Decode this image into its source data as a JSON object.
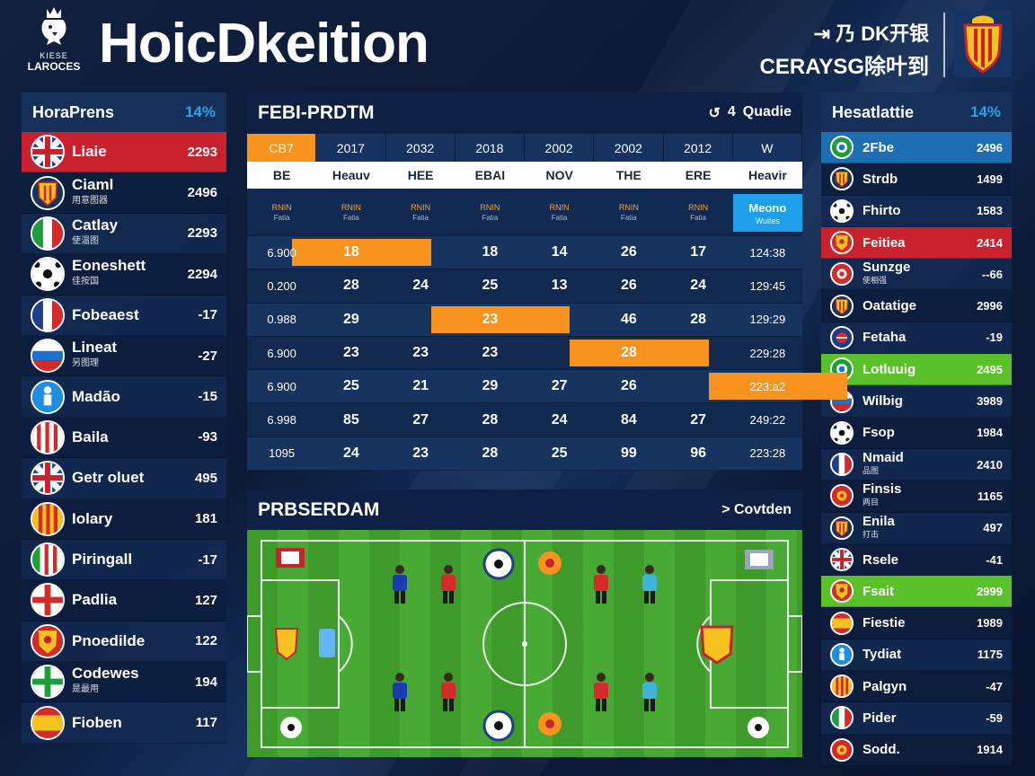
{
  "header": {
    "league_line1": "KIESE",
    "league_line2": "LAROCES",
    "title": "HoicDkeition",
    "right_line1": "⇥ 乃 DK开银",
    "right_line2": "CERAYSG除叶到"
  },
  "left_panel": {
    "title": "HoraPrens",
    "pct": "14%",
    "rows": [
      {
        "name": "Liaie",
        "sub": "",
        "value": "2293",
        "flag": "uk",
        "highlight": "red"
      },
      {
        "name": "Ciaml",
        "sub": "用意图器",
        "value": "2496",
        "flag": "crest",
        "highlight": ""
      },
      {
        "name": "Catlay",
        "sub": "使温图",
        "value": "2293",
        "flag": "italy",
        "highlight": ""
      },
      {
        "name": "Eoneshett",
        "sub": "佳按国",
        "value": "2294",
        "flag": "ball",
        "highlight": ""
      },
      {
        "name": "Fobeaest",
        "sub": "",
        "value": "-17",
        "flag": "france",
        "highlight": ""
      },
      {
        "name": "Lineat",
        "sub": "另图理",
        "value": "-27",
        "flag": "russia",
        "highlight": ""
      },
      {
        "name": "Madão",
        "sub": "",
        "value": "-15",
        "flag": "figure",
        "highlight": ""
      },
      {
        "name": "Baila",
        "sub": "",
        "value": "-93",
        "flag": "stripes",
        "highlight": ""
      },
      {
        "name": "Getr oluet",
        "sub": "",
        "value": "495",
        "flag": "uk",
        "highlight": ""
      },
      {
        "name": "Iolary",
        "sub": "",
        "value": "181",
        "flag": "spainstripes",
        "highlight": ""
      },
      {
        "name": "Piringall",
        "sub": "",
        "value": "-17",
        "flag": "greenred",
        "highlight": ""
      },
      {
        "name": "Padlia",
        "sub": "",
        "value": "127",
        "flag": "england",
        "highlight": ""
      },
      {
        "name": "Pnoedilde",
        "sub": "",
        "value": "122",
        "flag": "yellowcrest",
        "highlight": ""
      },
      {
        "name": "Codewes",
        "sub": "是最用",
        "value": "194",
        "flag": "greencross",
        "highlight": ""
      },
      {
        "name": "Fioben",
        "sub": "",
        "value": "117",
        "flag": "spain",
        "highlight": ""
      }
    ]
  },
  "fixtures": {
    "title": "FEBI-PRDTM",
    "ctrl_icon": "↺",
    "ctrl_num": "4",
    "ctrl_label": "Quadie",
    "years": [
      "CB7",
      "2017",
      "2032",
      "2018",
      "2002",
      "2002",
      "2012",
      "W"
    ],
    "columns": [
      "BE",
      "Heauv",
      "HEE",
      "EBAI",
      "NOV",
      "THE",
      "ERE",
      "Heavir"
    ],
    "subs": [
      {
        "a": "RNIN",
        "b": "Fatia"
      },
      {
        "a": "RNIN",
        "b": "Fatia"
      },
      {
        "a": "RNIN",
        "b": "Fatia"
      },
      {
        "a": "RNIN",
        "b": "Fatia"
      },
      {
        "a": "RNIN",
        "b": "Fatia"
      },
      {
        "a": "RNIN",
        "b": "Fatia"
      },
      {
        "a": "RNIN",
        "b": "Fatia"
      }
    ],
    "match_label": "Meono",
    "match_sub": "Wuites",
    "rows": [
      {
        "cells": [
          "6.900",
          "18",
          "",
          "18",
          "14",
          "26",
          "17",
          "124:38"
        ],
        "hl": [
          1,
          2
        ]
      },
      {
        "cells": [
          "0.200",
          "28",
          "24",
          "25",
          "13",
          "26",
          "24",
          "129:45"
        ],
        "hl": []
      },
      {
        "cells": [
          "0.988",
          "29",
          "",
          "23",
          "",
          "46",
          "28",
          "129:29"
        ],
        "hl": [
          3,
          4
        ]
      },
      {
        "cells": [
          "6.900",
          "23",
          "23",
          "23",
          "",
          "28",
          "",
          "229:28"
        ],
        "hl": [
          5,
          6
        ]
      },
      {
        "cells": [
          "6.900",
          "25",
          "21",
          "29",
          "27",
          "26",
          "",
          "223:a2"
        ],
        "hl": [
          7,
          8
        ]
      },
      {
        "cells": [
          "6.998",
          "85",
          "27",
          "28",
          "24",
          "84",
          "27",
          "249:22"
        ],
        "hl": []
      },
      {
        "cells": [
          "1095",
          "24",
          "23",
          "28",
          "25",
          "99",
          "96",
          "223:28"
        ],
        "hl": []
      }
    ]
  },
  "pitch": {
    "title": "PRBSERDAM",
    "ctrl_icon": ">",
    "ctrl_label": "Covtden",
    "home_color": "#1a3db0",
    "away_color": "#d42a2a"
  },
  "right_panel": {
    "title": "Hesatlattie",
    "pct": "14%",
    "rows": [
      {
        "name": "2Fbe",
        "sub": "",
        "value": "2496",
        "flag": "greenglobe",
        "highlight": "blue"
      },
      {
        "name": "Strdb",
        "sub": "",
        "value": "1499",
        "flag": "crest",
        "highlight": ""
      },
      {
        "name": "Fhirto",
        "sub": "",
        "value": "1583",
        "flag": "ball",
        "highlight": ""
      },
      {
        "name": "Feitiea",
        "sub": "",
        "value": "2414",
        "flag": "yellowcrest",
        "highlight": "red"
      },
      {
        "name": "Sunzge",
        "sub": "使相强",
        "value": "--66",
        "flag": "redwhite",
        "highlight": ""
      },
      {
        "name": "Oatatige",
        "sub": "",
        "value": "2996",
        "flag": "crest",
        "highlight": ""
      },
      {
        "name": "Fetaha",
        "sub": "",
        "value": "-19",
        "flag": "blueglobe",
        "highlight": ""
      },
      {
        "name": "Lotluuig",
        "sub": "",
        "value": "2495",
        "flag": "greenglobe",
        "highlight": "green"
      },
      {
        "name": "Wilbig",
        "sub": "",
        "value": "3989",
        "flag": "russia",
        "highlight": ""
      },
      {
        "name": "Fsop",
        "sub": "",
        "value": "1984",
        "flag": "ball",
        "highlight": ""
      },
      {
        "name": "Nmaid",
        "sub": "品图",
        "value": "2410",
        "flag": "france",
        "highlight": ""
      },
      {
        "name": "Finsis",
        "sub": "两目",
        "value": "1165",
        "flag": "redcrest",
        "highlight": ""
      },
      {
        "name": "Enila",
        "sub": "打击",
        "value": "497",
        "flag": "crest",
        "highlight": ""
      },
      {
        "name": "Rsele",
        "sub": "",
        "value": "-41",
        "flag": "uk",
        "highlight": ""
      },
      {
        "name": "Fsait",
        "sub": "",
        "value": "2999",
        "flag": "yellowcrest",
        "highlight": "green"
      },
      {
        "name": "Fiestie",
        "sub": "",
        "value": "1989",
        "flag": "spain",
        "highlight": ""
      },
      {
        "name": "Tydiat",
        "sub": "",
        "value": "1175",
        "flag": "figure",
        "highlight": ""
      },
      {
        "name": "Palgyn",
        "sub": "",
        "value": "-47",
        "flag": "spainstripes",
        "highlight": ""
      },
      {
        "name": "Pider",
        "sub": "",
        "value": "-59",
        "flag": "italy",
        "highlight": ""
      },
      {
        "name": "Sodd.",
        "sub": "",
        "value": "1914",
        "flag": "redcrest",
        "highlight": ""
      }
    ]
  }
}
